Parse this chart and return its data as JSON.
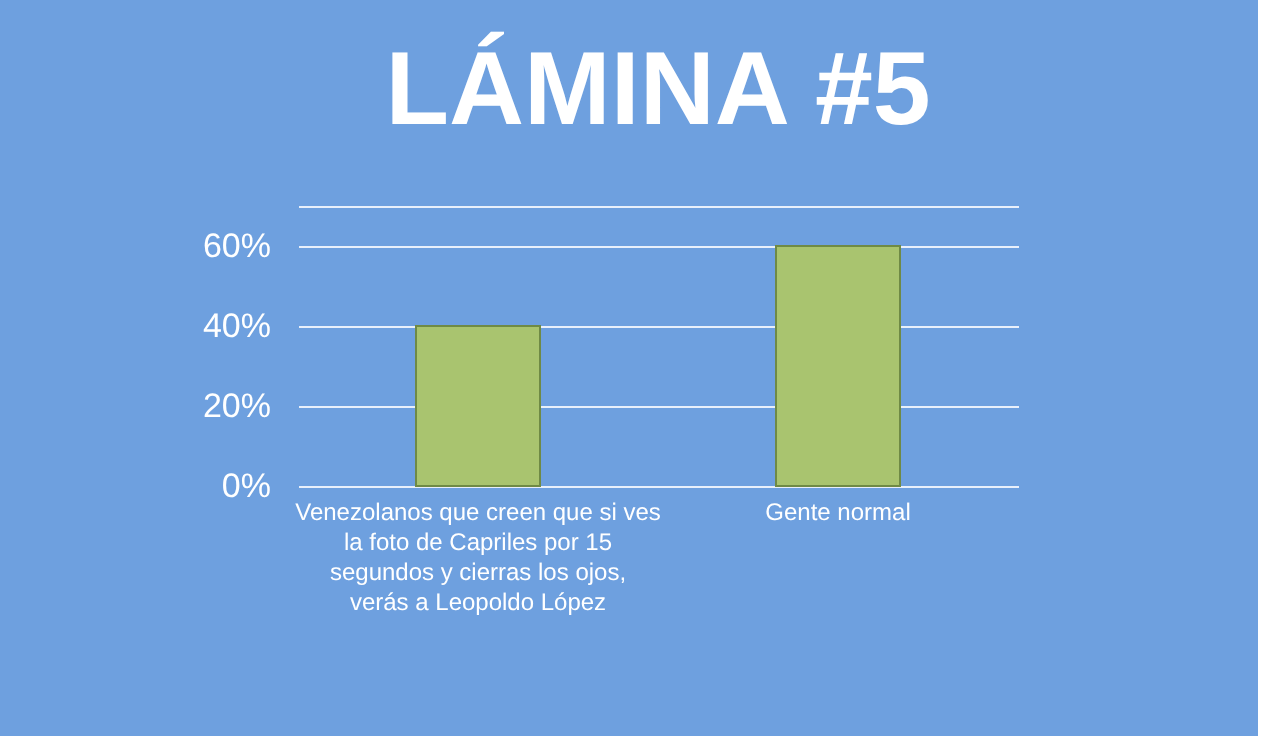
{
  "chart_data": {
    "type": "bar",
    "title": "LÁMINA #5",
    "categories": [
      "Venezolanos que creen que si ves la foto de Capriles por 15 segundos y cierras los ojos, verás a Leopoldo López",
      "Gente normal"
    ],
    "values": [
      40,
      60
    ],
    "color": "#a9c46f",
    "ylim": [
      0,
      70
    ],
    "yticks": [
      {
        "value": 0,
        "label": "0%"
      },
      {
        "value": 20,
        "label": "20%"
      },
      {
        "value": 40,
        "label": "40%"
      },
      {
        "value": 60,
        "label": "60%"
      },
      {
        "value": 70,
        "label": null
      }
    ],
    "grid": true
  }
}
